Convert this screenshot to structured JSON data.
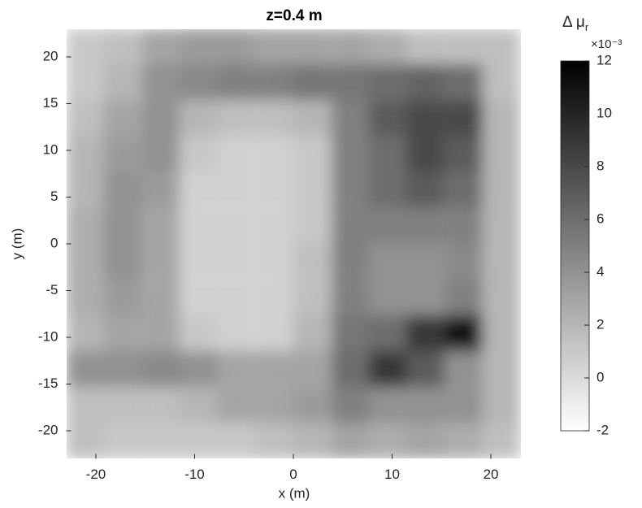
{
  "chart_data": {
    "type": "heatmap",
    "title": "z=0.4 m",
    "x_label": "x (m)",
    "y_label": "y (m)",
    "x": [
      -21.1,
      -17.3,
      -13.4,
      -9.6,
      -5.8,
      -1.9,
      1.9,
      5.8,
      9.6,
      13.4,
      17.3,
      21.1
    ],
    "y": [
      21.1,
      17.3,
      13.4,
      9.6,
      5.8,
      1.9,
      -1.9,
      -5.8,
      -9.6,
      -13.4,
      -17.3,
      -21.1
    ],
    "z": [
      [
        1,
        1.5,
        3,
        3.5,
        3.5,
        3,
        3,
        3,
        2.5,
        1.5,
        1.5,
        1.5
      ],
      [
        1,
        2,
        4,
        4.5,
        5,
        5,
        5.5,
        5.5,
        6,
        6.5,
        6,
        1.5
      ],
      [
        1.5,
        3,
        4,
        2,
        1.5,
        1.5,
        2,
        5,
        7,
        8,
        8,
        2
      ],
      [
        2,
        3.5,
        4,
        1,
        0.5,
        0.5,
        1,
        5,
        6,
        8,
        7,
        2
      ],
      [
        2,
        4,
        3.5,
        0.5,
        0.5,
        0.5,
        1,
        5,
        6,
        7,
        6,
        2
      ],
      [
        2.5,
        4,
        3,
        0.5,
        0.5,
        0.5,
        1,
        5,
        5,
        5,
        5,
        2
      ],
      [
        2.5,
        4,
        3,
        0.5,
        0.5,
        0.5,
        1.5,
        5,
        4,
        4,
        4.5,
        2
      ],
      [
        2.5,
        3.5,
        3,
        0.5,
        0.5,
        0.5,
        1.5,
        5,
        4,
        4,
        5,
        2
      ],
      [
        2,
        3,
        3,
        1,
        0.5,
        0.5,
        2,
        5.5,
        6,
        9,
        11,
        2
      ],
      [
        4,
        4,
        4.5,
        4,
        3,
        3,
        3,
        6,
        9,
        7,
        4,
        2
      ],
      [
        1.5,
        1.5,
        1.5,
        2,
        3,
        3,
        3.5,
        5,
        4,
        4,
        4,
        2
      ],
      [
        1.5,
        1,
        1,
        1,
        1,
        1.5,
        2,
        3,
        2.5,
        3,
        2.5,
        1.5
      ]
    ],
    "xlim": [
      -23,
      23
    ],
    "ylim": [
      -23,
      23
    ],
    "xticks": [
      -20,
      -10,
      0,
      10,
      20
    ],
    "yticks": [
      -20,
      -15,
      -10,
      -5,
      0,
      5,
      10,
      15,
      20
    ],
    "clim": [
      -2,
      12
    ],
    "cticks": [
      -2,
      0,
      2,
      4,
      6,
      8,
      10,
      12
    ],
    "colormap": [
      "#ffffff",
      "#000000"
    ],
    "colorbar_label": "Δ μ",
    "colorbar_label_sub": "r",
    "colorbar_scale": "×10⁻³"
  }
}
